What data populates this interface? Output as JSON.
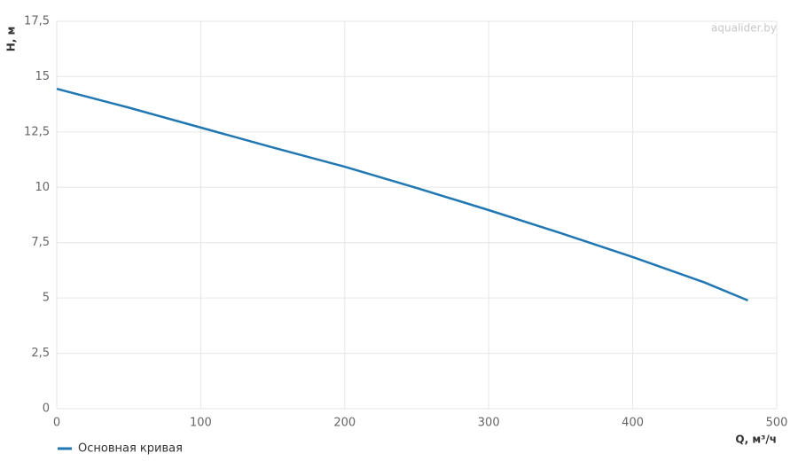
{
  "chart_data": {
    "type": "line",
    "watermark": "aqualider.by",
    "x_label": "Q, м³/ч",
    "y_label": "H, м",
    "x": [
      0,
      50,
      100,
      150,
      200,
      250,
      300,
      350,
      400,
      450,
      480
    ],
    "series": [
      {
        "name": "Основная кривая",
        "color": "#1f77b4",
        "values": [
          14.45,
          13.6,
          12.7,
          11.8,
          10.93,
          9.97,
          8.97,
          7.93,
          6.85,
          5.7,
          4.89
        ]
      }
    ],
    "xlim": [
      0,
      500
    ],
    "xticks": [
      0,
      100,
      200,
      300,
      400,
      500
    ],
    "ylim": [
      0,
      17.5
    ],
    "yticks": [
      0,
      {
        "value": 2.5,
        "label": "2,5"
      },
      5,
      {
        "value": 7.5,
        "label": "7,5"
      },
      10,
      {
        "value": 12.5,
        "label": "12,5"
      },
      15,
      {
        "value": 17.5,
        "label": "17,5"
      }
    ],
    "grid": true,
    "legend": "bottom-left"
  }
}
